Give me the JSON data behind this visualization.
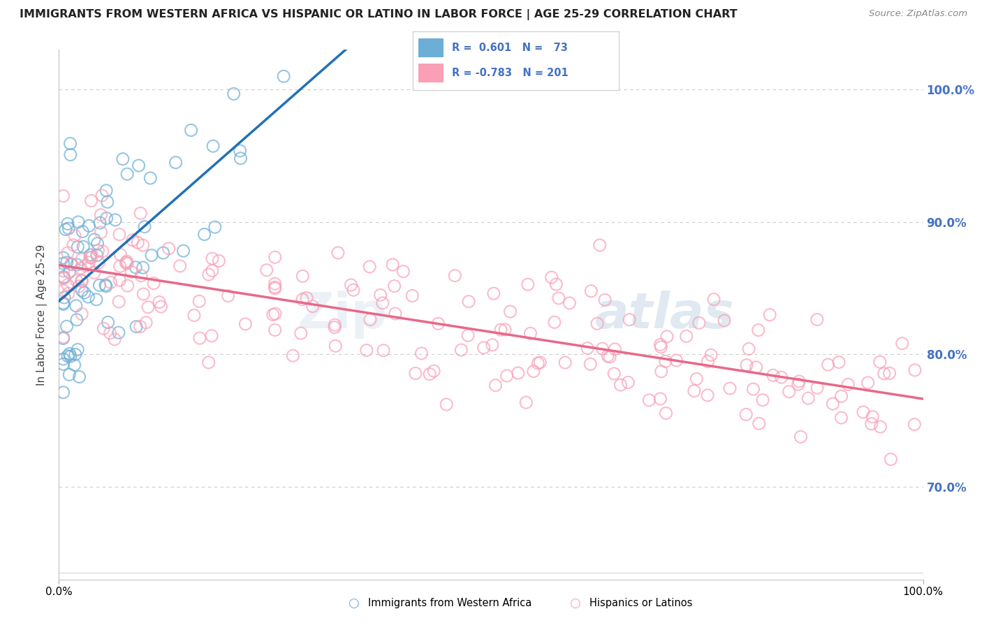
{
  "title": "IMMIGRANTS FROM WESTERN AFRICA VS HISPANIC OR LATINO IN LABOR FORCE | AGE 25-29 CORRELATION CHART",
  "source": "Source: ZipAtlas.com",
  "ylabel": "In Labor Force | Age 25-29",
  "xlim": [
    0.0,
    1.0
  ],
  "ylim": [
    0.63,
    1.03
  ],
  "yticks": [
    0.7,
    0.8,
    0.9,
    1.0
  ],
  "ytick_labels": [
    "70.0%",
    "80.0%",
    "90.0%",
    "100.0%"
  ],
  "blue_R": 0.601,
  "blue_N": 73,
  "pink_R": -0.783,
  "pink_N": 201,
  "blue_color": "#6baed6",
  "pink_color": "#fa9fb5",
  "blue_line_color": "#2171b5",
  "pink_line_color": "#e8688a",
  "legend_label_blue": "Immigrants from Western Africa",
  "legend_label_pink": "Hispanics or Latinos",
  "watermark_zip": "Zip",
  "watermark_atlas": "atlas",
  "background_color": "#ffffff",
  "grid_color": "#cccccc",
  "title_color": "#222222",
  "source_color": "#888888",
  "axis_label_color": "#444444",
  "tick_label_color_right": "#4472c4",
  "legend_text_color": "#4472c4"
}
